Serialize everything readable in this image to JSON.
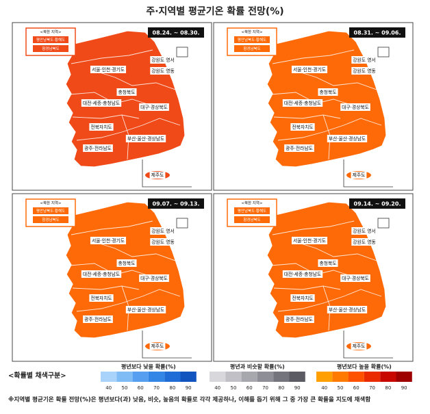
{
  "title": "주·지역별 평균기온 확률 전망(%)",
  "north_box": {
    "heading": "<북한 지역>",
    "items": [
      "평안남북도·황해도",
      "함경남북도"
    ]
  },
  "regions": [
    "강원도 영서",
    "서울·인천·경기도",
    "강원도 영동",
    "충청북도",
    "대전·세종·충청남도",
    "대구·경상북도",
    "전북자치도",
    "부산·울산·경상남도",
    "광주·전라남도",
    "제주도"
  ],
  "panels": [
    {
      "date": "08.24. ~ 08.30.",
      "color": "#f04a18"
    },
    {
      "date": "08.31. ~ 09.06.",
      "color": "#ff6a08"
    },
    {
      "date": "09.07. ~ 09.13.",
      "color": "#ff6a08"
    },
    {
      "date": "09.14. ~ 09.20.",
      "color": "#ff6a08"
    }
  ],
  "legend": {
    "heading": "<확률별 채색구분>",
    "scales": [
      {
        "title": "평년보다 낮을 확률(%)",
        "ticks": [
          40,
          50,
          60,
          70,
          80,
          90
        ],
        "colors": [
          "#a9d3fb",
          "#7fbcf6",
          "#569ff0",
          "#3486e6",
          "#1f6cd6",
          "#1153bf"
        ]
      },
      {
        "title": "평년과 비슷할 확률(%)",
        "ticks": [
          40,
          50,
          60,
          70,
          80,
          90
        ],
        "colors": [
          "#d8d8dc",
          "#c0c0c6",
          "#a7a7ae",
          "#8e8e96",
          "#74747d",
          "#5b5b64"
        ]
      },
      {
        "title": "평년보다 높을 확률(%)",
        "ticks": [
          40,
          50,
          60,
          70,
          80,
          90
        ],
        "colors": [
          "#ffa000",
          "#ff7a00",
          "#ff5200",
          "#ea2a00",
          "#c80800",
          "#9e0000"
        ]
      }
    ]
  },
  "note": "※지역별 평균기온 확률 전망(%)은 평년보다(과) 낮음, 비슷, 높음의 확률로 각각 제공하나, 이해를 돕기 위해 그 중 가장 큰 확률을 지도에 채색함"
}
